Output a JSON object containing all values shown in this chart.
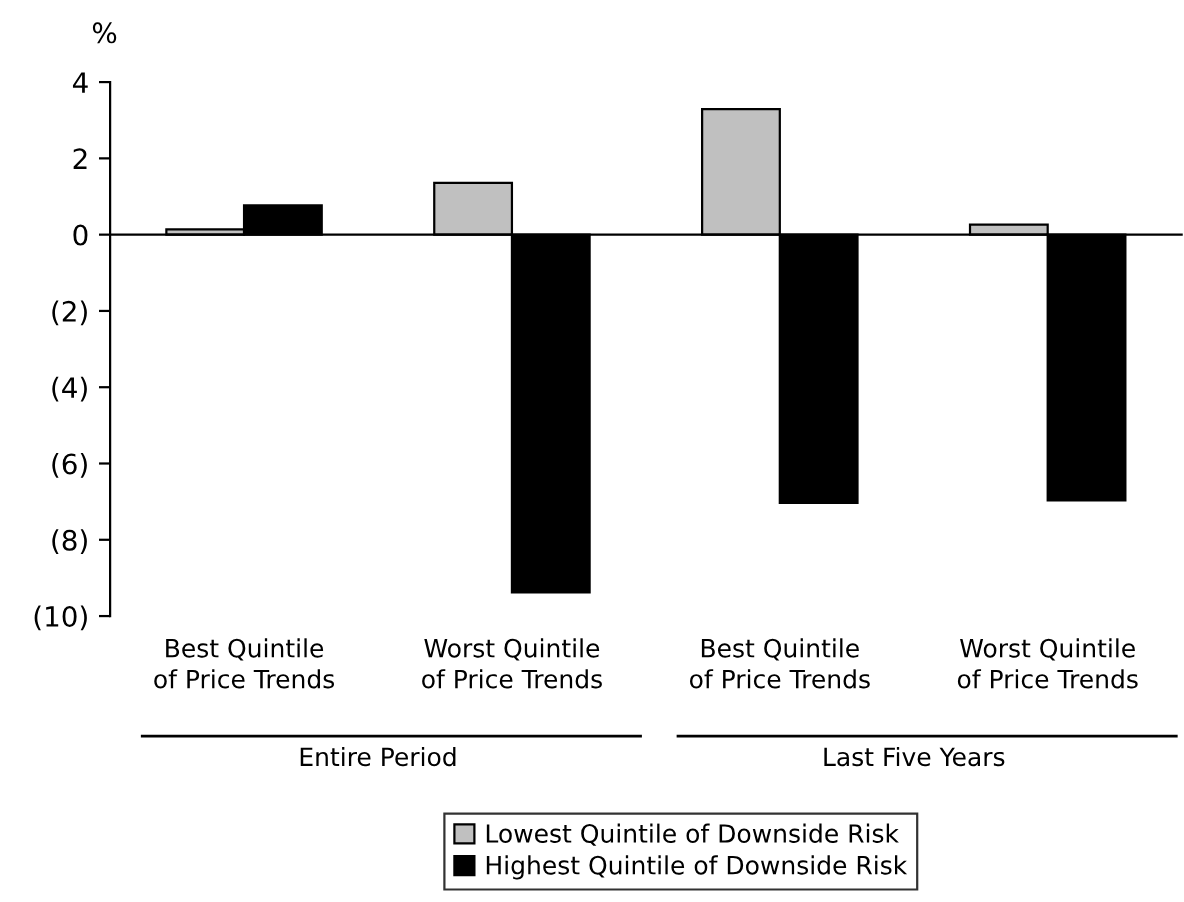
{
  "chart_data": {
    "type": "bar",
    "ylabel": "%",
    "categories": [
      "Best Quintile\nof Price Trends",
      "Worst Quintile\nof Price Trends",
      "Best Quintile\nof Price Trends",
      "Worst Quintile\nof Price Trends"
    ],
    "series": [
      {
        "name": "Lowest Quintile of Downside Risk",
        "color": "#c0c0c0",
        "values": [
          0.14,
          1.36,
          3.29,
          0.26
        ]
      },
      {
        "name": "Highest Quintile of Downside Risk",
        "color": "#000000",
        "values": [
          0.77,
          -9.38,
          -7.03,
          -6.97
        ]
      }
    ],
    "ylim": [
      -10,
      4
    ],
    "yticks": [
      4,
      2,
      0,
      {
        "value": -2,
        "label": "(2)"
      },
      {
        "value": -4,
        "label": "(4)"
      },
      {
        "value": -6,
        "label": "(6)"
      },
      {
        "value": -8,
        "label": "(8)"
      },
      {
        "value": -10,
        "label": "(10)"
      }
    ],
    "annotations": [
      "Entire Period",
      "Last Five Years"
    ],
    "legend": "bottom"
  }
}
